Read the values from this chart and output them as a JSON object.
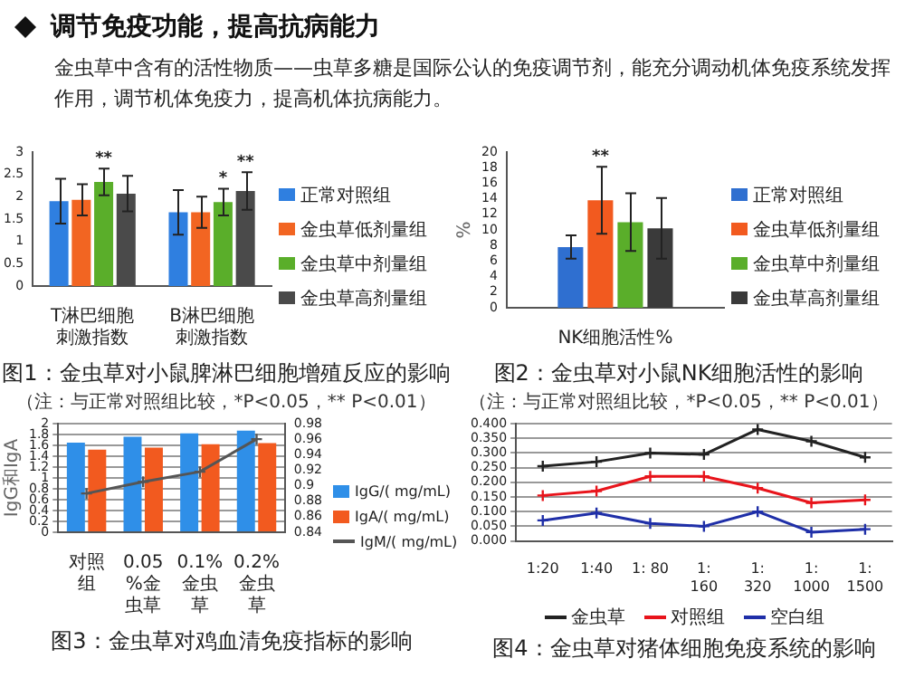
{
  "chart_data": [
    {
      "type": "other",
      "title": "调节免疫功能，提高抗病能力",
      "subtitle": "金虫草中含有的活性物质——虫草多糖是国际公认的免疫调节剂，能充分调动机体免疫系统发挥作用，调节机体免疫力，提高机体抗病能力。"
    },
    {
      "type": "bar",
      "title": "图1：金虫草对小鼠脾淋巴细胞增殖反应的影响",
      "subtitle": "（注：与正常对照组比较，*P<0.05，** P<0.01）",
      "categories": [
        "T淋巴细胞刺激指数",
        "B淋巴细胞刺激指数"
      ],
      "ylim": [
        0,
        3
      ],
      "yticks": [
        0,
        0.5,
        1,
        1.5,
        2,
        2.5,
        3
      ],
      "legend": "right",
      "series": [
        {
          "name": "正常对照组",
          "color": "#2f7fe0",
          "values": [
            1.9,
            1.65
          ],
          "errors": [
            0.5,
            0.5
          ]
        },
        {
          "name": "金虫草低剂量组",
          "color": "#f26522",
          "values": [
            1.93,
            1.65
          ],
          "errors": [
            0.35,
            0.35
          ]
        },
        {
          "name": "金虫草中剂量组",
          "color": "#5aae2a",
          "values": [
            2.33,
            1.88
          ],
          "errors": [
            0.3,
            0.3
          ],
          "value_labels": [
            "**",
            "*"
          ]
        },
        {
          "name": "金虫草高剂量组",
          "color": "#4a4a4a",
          "values": [
            2.07,
            2.13
          ],
          "errors": [
            0.4,
            0.42
          ],
          "value_labels": [
            null,
            "**"
          ]
        }
      ]
    },
    {
      "type": "bar",
      "title": "图2：金虫草对小鼠NK细胞活性的影响",
      "subtitle": "（注：与正常对照组比较，*P<0.05，** P<0.01）",
      "categories": [
        "NK细胞活性%"
      ],
      "ylabel": "%",
      "ylim": [
        0,
        20
      ],
      "yticks": [
        0,
        2,
        4,
        6,
        8,
        10,
        12,
        14,
        16,
        18,
        20
      ],
      "legend": "right",
      "series": [
        {
          "name": "正常对照组",
          "color": "#2f6fd0",
          "values": [
            7.8
          ],
          "errors": [
            1.5
          ]
        },
        {
          "name": "金虫草低剂量组",
          "color": "#f25a1f",
          "values": [
            13.8
          ],
          "errors": [
            4.3
          ],
          "value_labels": [
            "**"
          ]
        },
        {
          "name": "金虫草中剂量组",
          "color": "#5aae2a",
          "values": [
            11
          ],
          "errors": [
            3.7
          ]
        },
        {
          "name": "金虫草高剂量组",
          "color": "#3a3a3a",
          "values": [
            10.2
          ],
          "errors": [
            3.9
          ]
        }
      ]
    },
    {
      "type": "bar",
      "title": "图3：金虫草对鸡血清免疫指标的影响",
      "categories": [
        "对照组",
        "0.05%金虫草",
        "0.1%金虫草",
        "0.2%金虫草"
      ],
      "ylabel": "IgG和IgA",
      "ylim": [
        0,
        2
      ],
      "yticks": [
        0,
        0.2,
        0.4,
        0.6,
        0.8,
        1,
        1.2,
        1.4,
        1.6,
        1.8,
        2
      ],
      "y2lim": [
        0.84,
        0.98
      ],
      "y2ticks": [
        0.84,
        0.86,
        0.88,
        0.9,
        0.92,
        0.94,
        0.96,
        0.98
      ],
      "grid": "y",
      "legend": "right",
      "series": [
        {
          "name": "IgG/( mg/mL)",
          "color": "#2f8fe8",
          "values": [
            1.65,
            1.76,
            1.82,
            1.87
          ]
        },
        {
          "name": "IgA/( mg/mL)",
          "color": "#f25a1f",
          "values": [
            1.52,
            1.56,
            1.62,
            1.64
          ]
        },
        {
          "name": "IgM/( mg/mL)",
          "type": "line",
          "axis": "y2",
          "color": "#555555",
          "marker": "cross",
          "values": [
            0.89,
            0.905,
            0.918,
            0.96
          ]
        }
      ]
    },
    {
      "type": "line",
      "title": "图4：金虫草对猪体细胞免疫系统的影响",
      "categories": [
        "1:20",
        "1:40",
        "1: 80",
        "1: 160",
        "1: 320",
        "1: 1000",
        "1: 1500"
      ],
      "ylim": [
        0,
        0.4
      ],
      "yticks": [
        {
          "value": 0,
          "label": "0.000"
        },
        {
          "value": 0.05,
          "label": "0.050"
        },
        {
          "value": 0.1,
          "label": "0.100"
        },
        {
          "value": 0.15,
          "label": "0.150"
        },
        {
          "value": 0.2,
          "label": "0.200"
        },
        {
          "value": 0.25,
          "label": "0.250"
        },
        {
          "value": 0.3,
          "label": "0.300"
        },
        {
          "value": 0.35,
          "label": "0.350"
        },
        {
          "value": 0.4,
          "label": "0.400"
        }
      ],
      "grid": "y",
      "legend": "bottom",
      "marker": "cross",
      "series": [
        {
          "name": "金虫草",
          "color": "#222222",
          "values": [
            0.255,
            0.27,
            0.3,
            0.295,
            0.38,
            0.34,
            0.285
          ]
        },
        {
          "name": "对照组",
          "color": "#e8141b",
          "values": [
            0.155,
            0.17,
            0.22,
            0.22,
            0.18,
            0.13,
            0.14
          ]
        },
        {
          "name": "空白组",
          "color": "#1f2fa8",
          "values": [
            0.07,
            0.095,
            0.06,
            0.05,
            0.1,
            0.03,
            0.04
          ]
        }
      ]
    }
  ]
}
